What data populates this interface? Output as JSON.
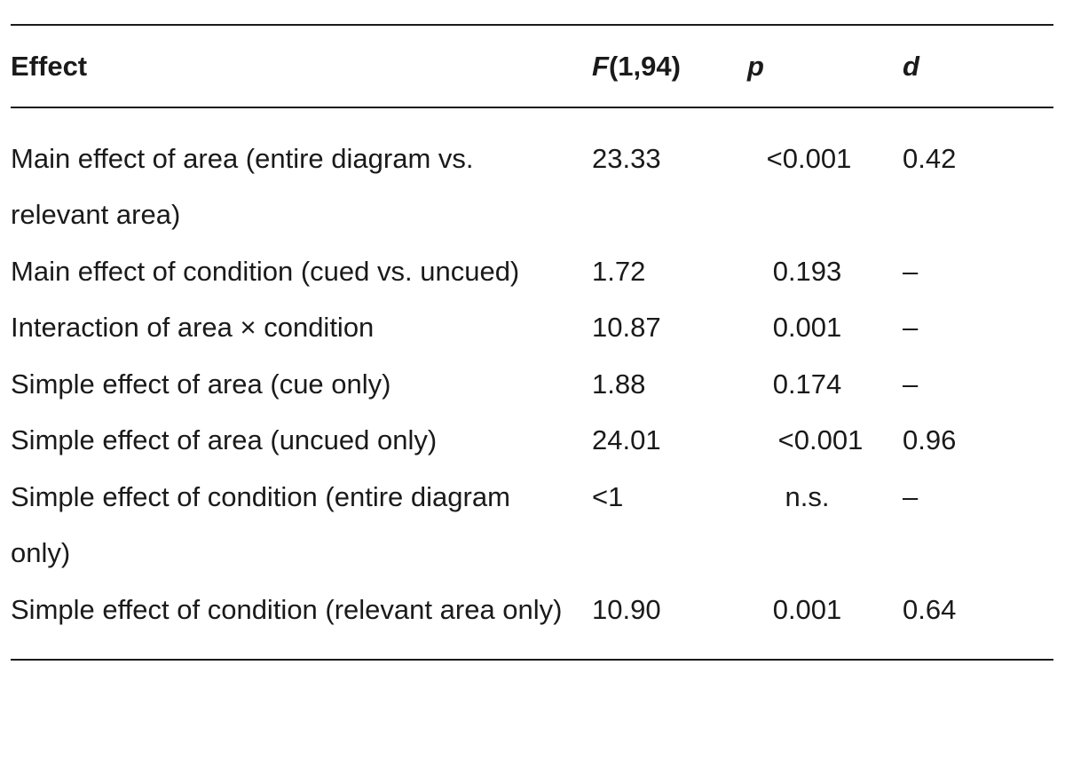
{
  "table": {
    "headers": {
      "effect": "Effect",
      "f_italic": "F",
      "f_rest": "(1,94)",
      "p": "p",
      "d": "d"
    },
    "rows": [
      {
        "effect": "Main effect of area (entire diagram vs. relevant area)",
        "f": "23.33",
        "p": "<0.001",
        "d": "0.42"
      },
      {
        "effect": "Main effect of condition (cued vs. uncued)",
        "f": "1.72",
        "p": "0.193",
        "d": "–"
      },
      {
        "effect": "Interaction of area × condition",
        "f": "10.87",
        "p": "0.001",
        "d": "–"
      },
      {
        "effect": "Simple effect of area (cue only)",
        "f": "1.88",
        "p": "0.174",
        "d": "–"
      },
      {
        "effect": "Simple effect of area (uncued only)",
        "f": "24.01",
        "p": "<0.001",
        "d": "0.96"
      },
      {
        "effect": "Simple effect of condition (entire diagram only)",
        "f": "<1",
        "p": "n.s.",
        "d": "–"
      },
      {
        "effect": "Simple effect of condition (relevant area only)",
        "f": "10.90",
        "p": "0.001",
        "d": "0.64"
      }
    ]
  }
}
